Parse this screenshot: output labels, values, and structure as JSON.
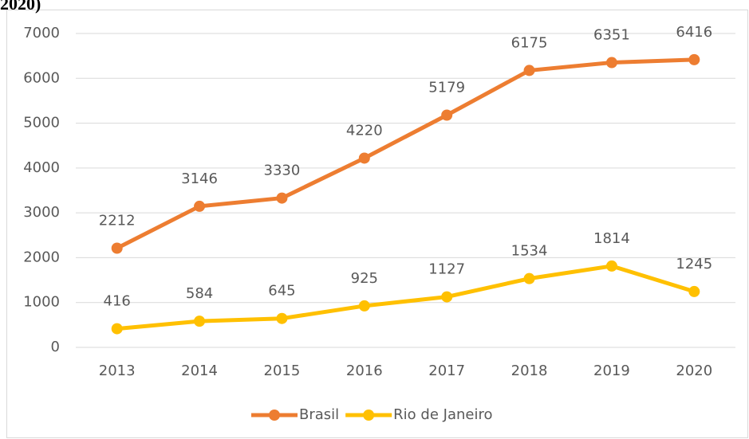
{
  "chart_data": {
    "type": "line",
    "title": "2020)",
    "categories": [
      "2013",
      "2014",
      "2015",
      "2016",
      "2017",
      "2018",
      "2019",
      "2020"
    ],
    "series": [
      {
        "name": "Brasil",
        "color": "#ed7d31",
        "values": [
          2212,
          3146,
          3330,
          4220,
          5179,
          6175,
          6351,
          6416
        ]
      },
      {
        "name": "Rio de Janeiro",
        "color": "#ffc000",
        "values": [
          416,
          584,
          645,
          925,
          1127,
          1534,
          1814,
          1245
        ]
      }
    ],
    "ylim": [
      0,
      7000
    ],
    "yticks": [
      0,
      1000,
      2000,
      3000,
      4000,
      5000,
      6000,
      7000
    ],
    "grid": true,
    "legend": "bottom"
  }
}
